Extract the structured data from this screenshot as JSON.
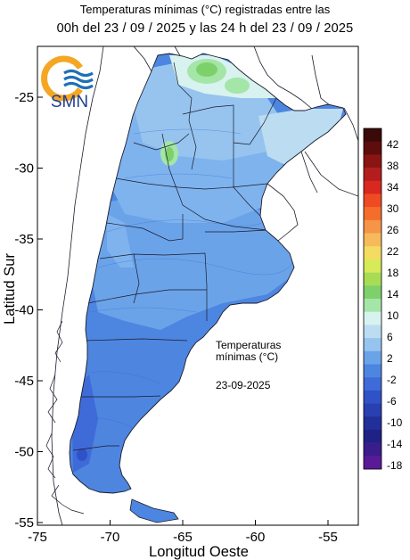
{
  "header": {
    "line1": "Temperaturas mínimas (°C) registradas entre las",
    "line2": "00h del 23 / 09 / 2025 y las 24 h del 23 / 09 / 2025"
  },
  "logo": {
    "text": "SMN",
    "icon": "smn-sun-waves-icon"
  },
  "axes": {
    "xlabel": "Longitud Oeste",
    "ylabel": "Latitud Sur",
    "x_ticks": [
      "-75",
      "-70",
      "-65",
      "-60",
      "-55"
    ],
    "y_ticks": [
      "-25",
      "-30",
      "-35",
      "-40",
      "-45",
      "-50",
      "-55"
    ]
  },
  "annotation": {
    "line1": "Temperaturas",
    "line2": "mínimas (°C)",
    "date": "23-09-2025"
  },
  "colorbar": {
    "labels": [
      "42",
      "38",
      "34",
      "30",
      "26",
      "22",
      "18",
      "14",
      "10",
      "6",
      "2",
      "-2",
      "-6",
      "-10",
      "-14",
      "-18"
    ],
    "colors": [
      "#3a0a08",
      "#5e0c0c",
      "#8a1414",
      "#b41d1d",
      "#d9281f",
      "#ef4b23",
      "#f46d2a",
      "#f69448",
      "#f6ba5a",
      "#f4dc62",
      "#d7ea58",
      "#a9dc55",
      "#7ed16a",
      "#a4e5a8",
      "#d8f2ef",
      "#bcdcf2",
      "#96c4ef",
      "#6ba3e9",
      "#4d86e0",
      "#3f6bd8",
      "#2f52c8",
      "#2840b0",
      "#222f98",
      "#1f2184",
      "#3a1d8c",
      "#5a1a98"
    ]
  },
  "colors": {
    "ocean": "#ffffff",
    "border": "#1a1a2a",
    "warm_north": "#a4e28c",
    "logo_orange": "#f5a623",
    "logo_blue": "#1d6fb8"
  }
}
